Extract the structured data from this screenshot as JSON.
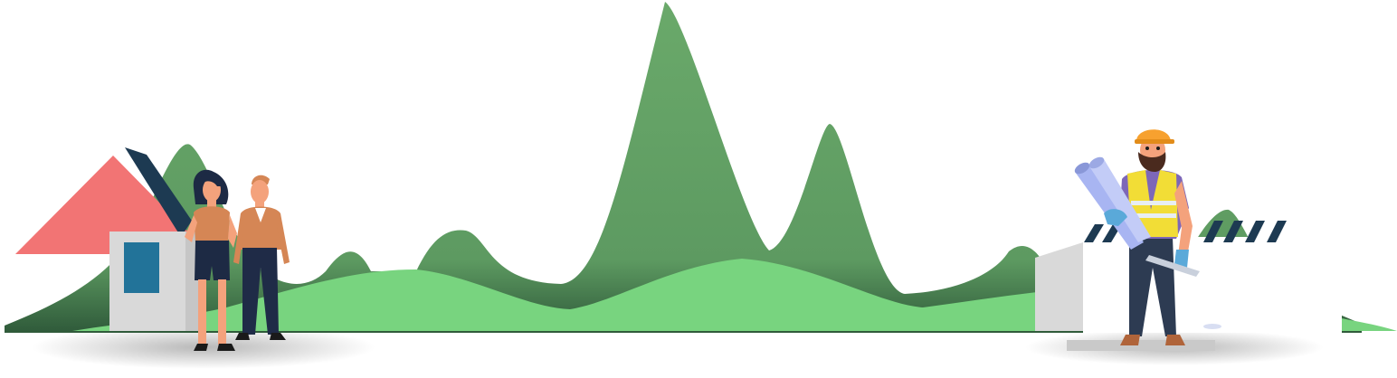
{
  "colors": {
    "hill_dark": "#6aa96a",
    "hill_light": "#78d47f",
    "hill_shadow": "#3f6a45",
    "roof": "#f27474",
    "house_wall": "#d9d9d9",
    "house_window": "#227399",
    "stripe_dark": "#1d3a52",
    "hardhat": "#f7a12f",
    "vest": "#f2dd36",
    "shirt_purple": "#7d67b8",
    "blueprint": "#a8b5f2",
    "skin": "#f4a27c",
    "jacket": "#d58655",
    "pants_dark": "#1f2b47",
    "ground_shadow": "#c9c9c9"
  },
  "icons": [
    "house-illustration",
    "couple-illustration",
    "construction-worker-illustration",
    "construction-barrier-illustration"
  ]
}
